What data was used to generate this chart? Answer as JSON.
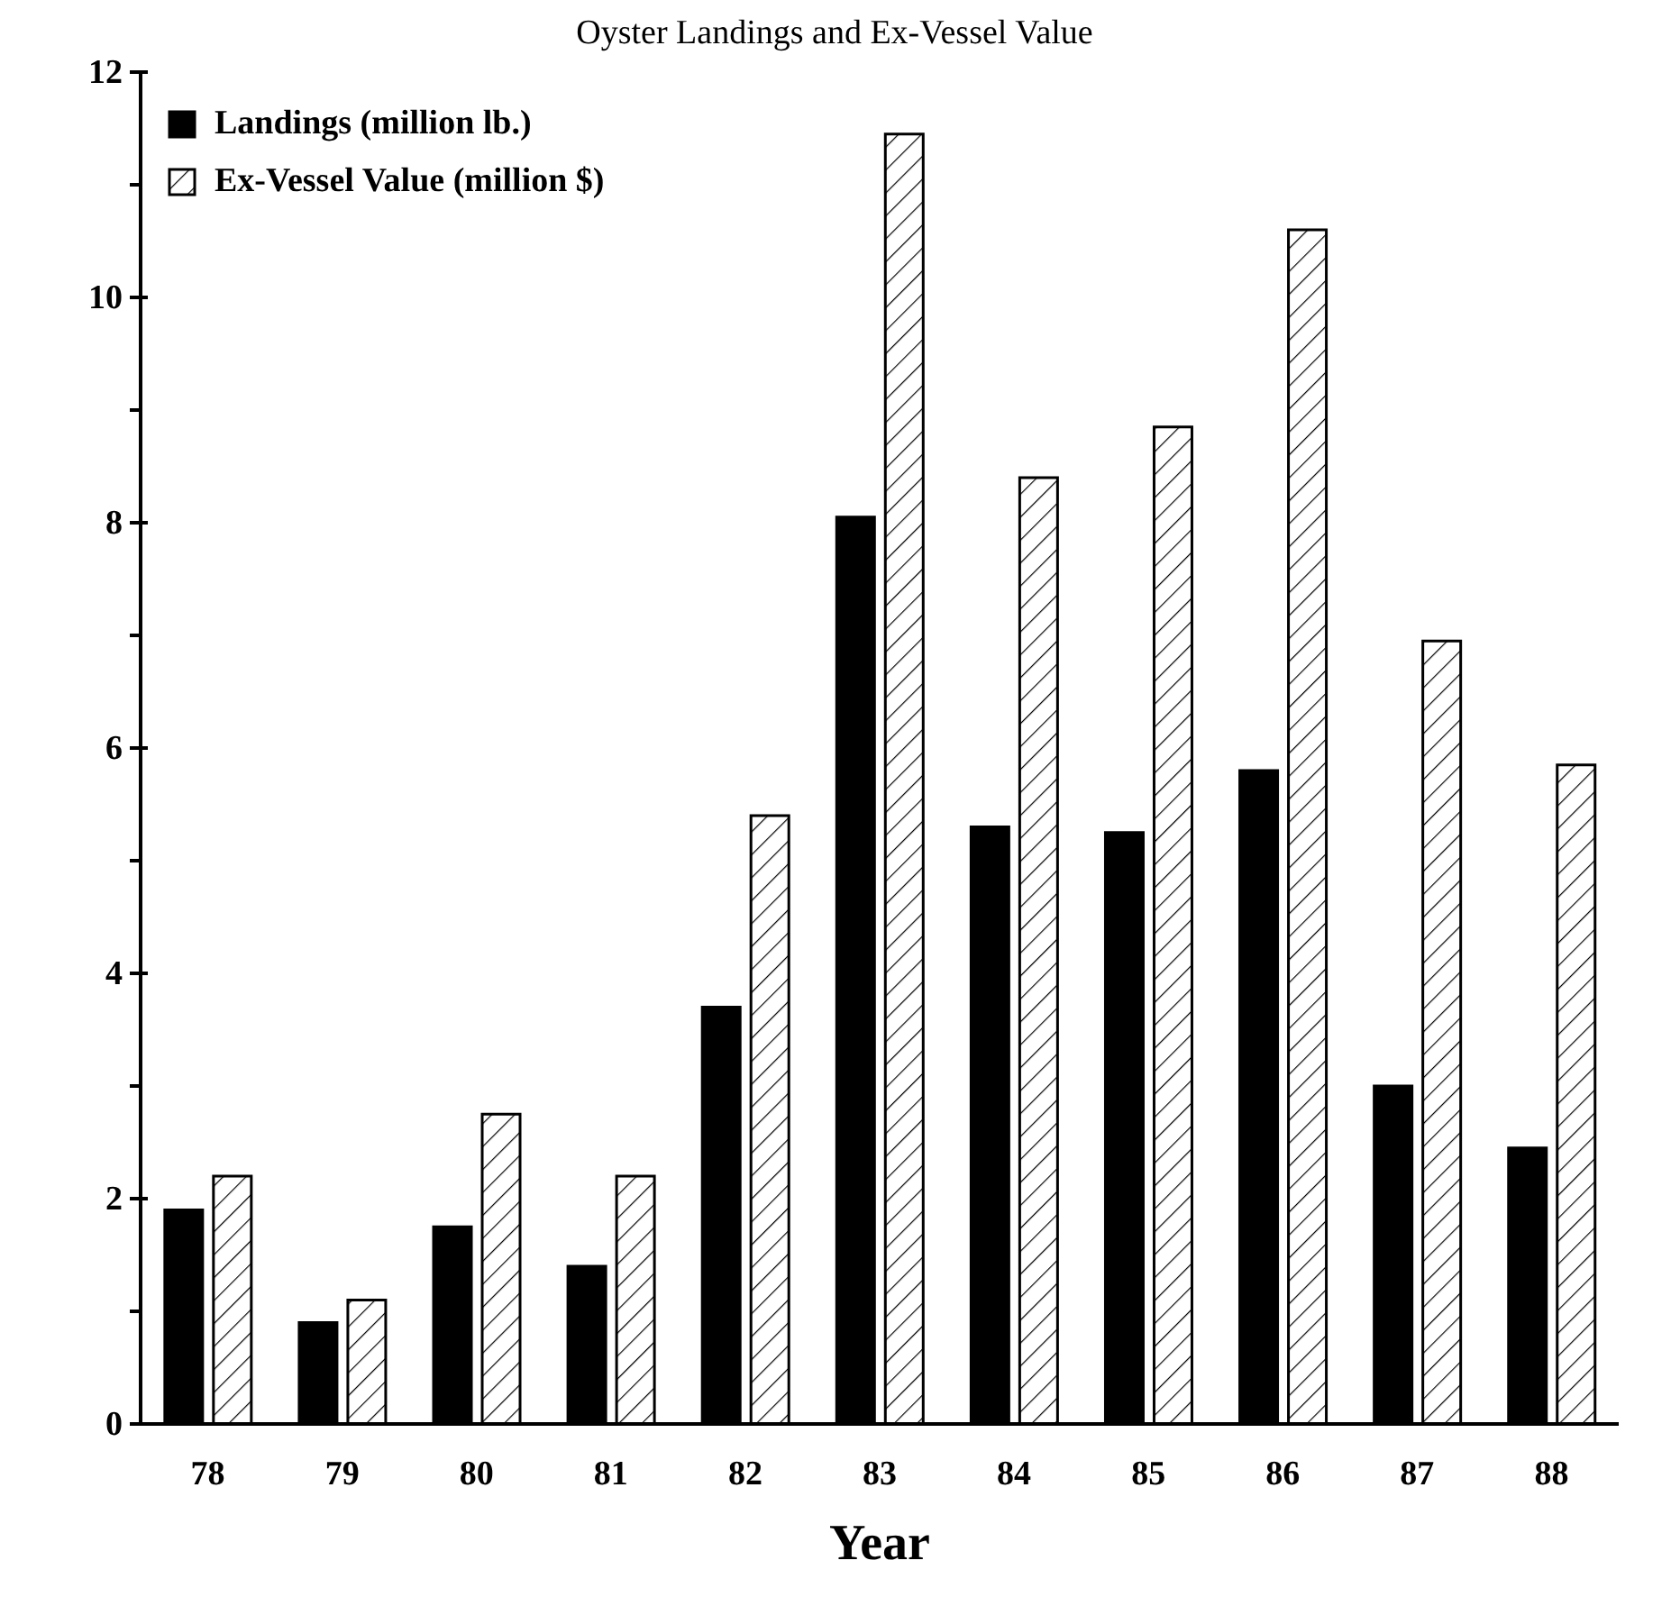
{
  "chart_data": {
    "type": "bar",
    "title": "Oyster Landings and Ex-Vessel Value",
    "xlabel": "Year",
    "categories": [
      "78",
      "79",
      "80",
      "81",
      "82",
      "83",
      "84",
      "85",
      "86",
      "87",
      "88"
    ],
    "series": [
      {
        "name": "Landings (million lb.)",
        "color": "#000000",
        "values": [
          1.9,
          0.9,
          1.75,
          1.4,
          3.7,
          8.05,
          5.3,
          5.25,
          5.8,
          3.0,
          2.45
        ]
      },
      {
        "name": "Ex-Vessel Value (million $)",
        "color": "#ffffff",
        "values": [
          2.2,
          1.1,
          2.75,
          2.2,
          5.4,
          11.45,
          8.4,
          8.85,
          10.6,
          6.95,
          5.85
        ]
      }
    ],
    "ylim": [
      0,
      12
    ],
    "yticks": [
      0,
      {
        "value": 1,
        "label": null
      },
      2,
      {
        "value": 3,
        "label": null
      },
      4,
      {
        "value": 5,
        "label": null
      },
      6,
      {
        "value": 7,
        "label": null
      },
      8,
      {
        "value": 9,
        "label": null
      },
      10,
      {
        "value": 11,
        "label": null
      },
      12
    ],
    "grid": false,
    "legend": "top left"
  }
}
